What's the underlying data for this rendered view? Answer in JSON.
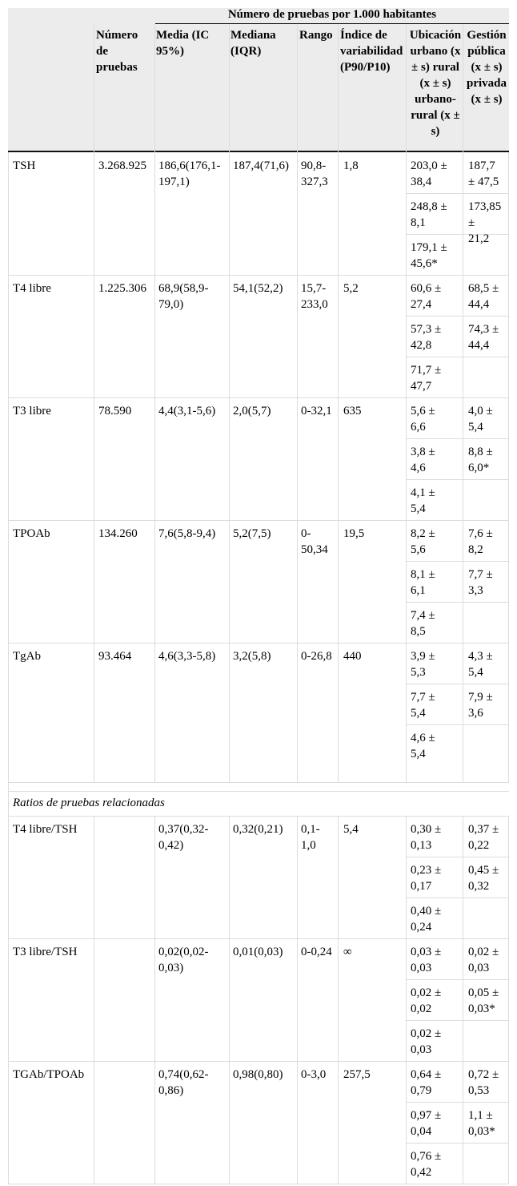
{
  "header": {
    "group_title": "Número de pruebas por 1.000 habitantes",
    "col_numero": "Número\nde\npruebas",
    "col_media": "Media (IC\n95%)",
    "col_mediana": "Mediana\n(IQR)",
    "col_rango": "Rango",
    "col_indice": "Índice de\nvariabilidad\n(P90/P10)",
    "col_ubicacion": "Ubicación\nurbano (x\n± s) rural\n(x ± s)\nurbano-\nrural (x ±\ns)",
    "col_gestion": "Gestión\npública\n(x ± s)\nprivada\n(x ± s)"
  },
  "section_label": "Ratios de pruebas relacionadas",
  "rows": [
    {
      "name": "TSH",
      "numero": "3.268.925",
      "media": "186,6(176,1-\n197,1)",
      "mediana": "187,4(71,6)",
      "rango": "90,8-\n327,3",
      "indice": "1,8",
      "ubic": [
        "203,0 ±\n38,4",
        "248,8 ±\n8,1",
        "179,1 ±\n45,6*"
      ],
      "gest": [
        "187,7\n± 47,5",
        "173,85\n±\n21,2"
      ]
    },
    {
      "name": "T4 libre",
      "numero": "1.225.306",
      "media": "68,9(58,9-\n79,0)",
      "mediana": "54,1(52,2)",
      "rango": "15,7-\n233,0",
      "indice": "5,2",
      "ubic": [
        "60,6 ±\n27,4",
        "57,3 ±\n42,8",
        "71,7 ±\n47,7"
      ],
      "gest": [
        "68,5 ±\n44,4",
        "74,3 ±\n44,4"
      ]
    },
    {
      "name": "T3 libre",
      "numero": "78.590",
      "media": "4,4(3,1-5,6)",
      "mediana": "2,0(5,7)",
      "rango": "0-32,1",
      "indice": "635",
      "ubic": [
        "5,6 ±\n6,6",
        "3,8 ±\n4,6",
        "4,1 ±\n5,4"
      ],
      "gest": [
        "4,0 ±\n5,4",
        "8,8 ±\n6,0*"
      ]
    },
    {
      "name": "TPOAb",
      "numero": "134.260",
      "media": "7,6(5,8-9,4)",
      "mediana": "5,2(7,5)",
      "rango": "0-\n50,34",
      "indice": "19,5",
      "ubic": [
        "8,2 ±\n5,6",
        "8,1 ±\n6,1",
        "7,4 ±\n8,5"
      ],
      "gest": [
        "7,6 ±\n8,2",
        "7,7 ±\n3,3"
      ]
    },
    {
      "name": "TgAb",
      "numero": "93.464",
      "media": "4,6(3,3-5,8)",
      "mediana": "3,2(5,8)",
      "rango": "0-26,8",
      "indice": "440",
      "ubic": [
        "3,9 ±\n5,3",
        "7,7 ±\n5,4",
        "4,6 ±\n5,4"
      ],
      "gest": [
        "4,3 ±\n5,4",
        "7,9 ±\n3,6"
      ]
    },
    {
      "name": "T4 libre/TSH",
      "numero": "",
      "media": "0,37(0,32-\n0,42)",
      "mediana": "0,32(0,21)",
      "rango": "0,1-\n1,0",
      "indice": "5,4",
      "ubic": [
        "0,30 ±\n0,13",
        "0,23 ±\n0,17",
        "0,40 ±\n0,24"
      ],
      "gest": [
        "0,37 ±\n0,22",
        "0,45 ±\n0,32"
      ]
    },
    {
      "name": "T3 libre/TSH",
      "numero": "",
      "media": "0,02(0,02-\n0,03)",
      "mediana": "0,01(0,03)",
      "rango": "0-0,24",
      "indice": "∞",
      "ubic": [
        "0,03 ±\n0,03",
        "0,02 ±\n0,02",
        "0,02 ±\n0,03"
      ],
      "gest": [
        "0,02 ±\n0,03",
        "0,05 ±\n0,03*"
      ]
    },
    {
      "name": "TGAb/TPOAb",
      "numero": "",
      "media": "0,74(0,62-\n0,86)",
      "mediana": "0,98(0,80)",
      "rango": "0-3,0",
      "indice": "257,5",
      "ubic": [
        "0,64 ±\n0,79",
        "0,97 ±\n0,04",
        "0,76 ±\n0,42"
      ],
      "gest": [
        "0,72 ±\n0,53",
        "1,1 ±\n0,03*"
      ]
    }
  ]
}
